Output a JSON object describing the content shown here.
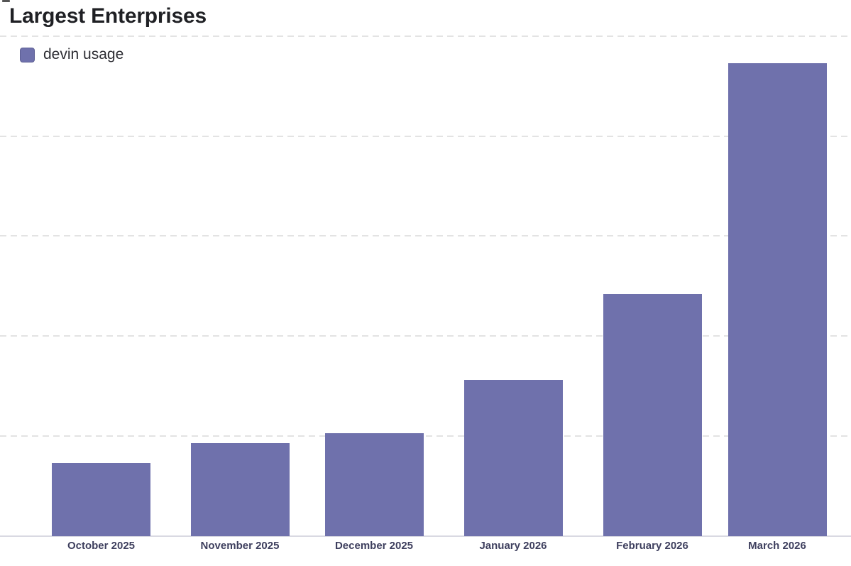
{
  "header": {
    "title": "Largest Enterprises"
  },
  "legend": {
    "label": "devin usage",
    "swatch_color": "#6f71ac"
  },
  "chart_data": {
    "type": "bar",
    "title": "Largest Enterprises",
    "categories": [
      "October 2025",
      "November 2025",
      "December 2025",
      "January 2026",
      "February 2026",
      "March 2026"
    ],
    "series": [
      {
        "name": "devin usage",
        "color": "#6f71ac",
        "values": [
          73,
          93,
          103,
          156,
          242,
          473
        ]
      }
    ],
    "xlabel": "",
    "ylabel": "",
    "ylim": [
      0,
      536
    ],
    "y_axis_tick_labels": "none",
    "gridline_values": [
      100,
      200,
      300,
      400,
      500
    ],
    "grid_style": "dashed-horizontal",
    "legend_position": "top-left",
    "baseline_axis": true
  },
  "colors": {
    "bar": "#6f71ac",
    "gridline": "#e3e3e3",
    "axis_line": "#d9d9e2",
    "title_text": "#1f2024",
    "legend_text": "#2d2d33",
    "axis_label_text": "#3e3f5e",
    "background": "#ffffff"
  }
}
